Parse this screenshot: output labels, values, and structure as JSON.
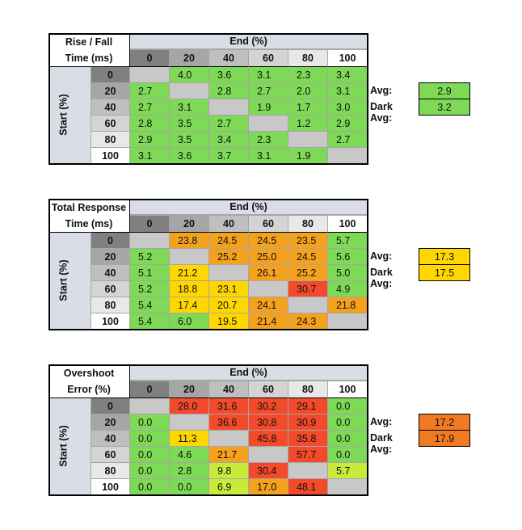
{
  "colors": {
    "header": "#d9dde6",
    "diag": "#c8c8c8",
    "grid": "#a6a6a6",
    "green": "#7ed957",
    "lime": "#c9ea3a",
    "yellow": "#ffd700",
    "orange": "#f4a11d",
    "dark_orange": "#f07a22",
    "red": "#f24a2a",
    "start_header_shades": [
      "#808080",
      "#a6a6a6",
      "#bfbfbf",
      "#d4d4d4",
      "#e8e8e8",
      "#ffffff"
    ]
  },
  "tables": [
    {
      "id": "rise-fall",
      "title_lines": [
        "Rise / Fall",
        "Time (ms)"
      ],
      "end_label": "End (%)",
      "start_label": "Start (%)",
      "columns": [
        "0",
        "20",
        "40",
        "60",
        "80",
        "100"
      ],
      "rows": [
        "0",
        "20",
        "40",
        "60",
        "80",
        "100"
      ],
      "cells": [
        [
          "",
          "4.0",
          "3.6",
          "3.1",
          "2.3",
          "3.4"
        ],
        [
          "2.7",
          "",
          "2.8",
          "2.7",
          "2.0",
          "3.1"
        ],
        [
          "2.7",
          "3.1",
          "",
          "1.9",
          "1.7",
          "3.0"
        ],
        [
          "2.8",
          "3.5",
          "2.7",
          "",
          "1.2",
          "2.9"
        ],
        [
          "2.9",
          "3.5",
          "3.4",
          "2.3",
          "",
          "2.7"
        ],
        [
          "3.1",
          "3.6",
          "3.7",
          "3.1",
          "1.9",
          ""
        ]
      ],
      "cell_colors": [
        [
          "diag",
          "green",
          "green",
          "green",
          "green",
          "green"
        ],
        [
          "green",
          "diag",
          "green",
          "green",
          "green",
          "green"
        ],
        [
          "green",
          "green",
          "diag",
          "green",
          "green",
          "green"
        ],
        [
          "green",
          "green",
          "green",
          "diag",
          "green",
          "green"
        ],
        [
          "green",
          "green",
          "green",
          "green",
          "diag",
          "green"
        ],
        [
          "green",
          "green",
          "green",
          "green",
          "green",
          "diag"
        ]
      ],
      "avg_label": "Avg:",
      "avg_value": "2.9",
      "avg_color": "green",
      "dark_avg_label": "Dark Avg:",
      "dark_avg_value": "3.2",
      "dark_avg_color": "green"
    },
    {
      "id": "total-response",
      "title_lines": [
        "Total Response",
        "Time (ms)"
      ],
      "end_label": "End (%)",
      "start_label": "Start (%)",
      "columns": [
        "0",
        "20",
        "40",
        "60",
        "80",
        "100"
      ],
      "rows": [
        "0",
        "20",
        "40",
        "60",
        "80",
        "100"
      ],
      "cells": [
        [
          "",
          "23.8",
          "24.5",
          "24.5",
          "23.5",
          "5.7"
        ],
        [
          "5.2",
          "",
          "25.2",
          "25.0",
          "24.5",
          "5.6"
        ],
        [
          "5.1",
          "21.2",
          "",
          "26.1",
          "25.2",
          "5.0"
        ],
        [
          "5.2",
          "18.8",
          "23.1",
          "",
          "30.7",
          "4.9"
        ],
        [
          "5.4",
          "17.4",
          "20.7",
          "24.1",
          "",
          "21.8"
        ],
        [
          "5.4",
          "6.0",
          "19.5",
          "21.4",
          "24.3",
          ""
        ]
      ],
      "cell_colors": [
        [
          "diag",
          "orange",
          "orange",
          "orange",
          "orange",
          "green"
        ],
        [
          "green",
          "diag",
          "orange",
          "orange",
          "orange",
          "green"
        ],
        [
          "green",
          "yellow",
          "diag",
          "orange",
          "orange",
          "green"
        ],
        [
          "green",
          "yellow",
          "yellow",
          "diag",
          "red",
          "green"
        ],
        [
          "green",
          "yellow",
          "yellow",
          "orange",
          "diag",
          "orange"
        ],
        [
          "green",
          "green",
          "yellow",
          "orange",
          "orange",
          "diag"
        ]
      ],
      "avg_label": "Avg:",
      "avg_value": "17.3",
      "avg_color": "yellow",
      "dark_avg_label": "Dark Avg:",
      "dark_avg_value": "17.5",
      "dark_avg_color": "yellow"
    },
    {
      "id": "overshoot",
      "title_lines": [
        "Overshoot",
        "Error (%)"
      ],
      "end_label": "End (%)",
      "start_label": "Start (%)",
      "columns": [
        "0",
        "20",
        "40",
        "60",
        "80",
        "100"
      ],
      "rows": [
        "0",
        "20",
        "40",
        "60",
        "80",
        "100"
      ],
      "cells": [
        [
          "",
          "28.0",
          "31.6",
          "30.2",
          "29.1",
          "0.0"
        ],
        [
          "0.0",
          "",
          "36.6",
          "30.8",
          "30.9",
          "0.0"
        ],
        [
          "0.0",
          "11.3",
          "",
          "45.8",
          "35.8",
          "0.0"
        ],
        [
          "0.0",
          "4.6",
          "21.7",
          "",
          "57.7",
          "0.0"
        ],
        [
          "0.0",
          "2.8",
          "9.8",
          "30.4",
          "",
          "5.7"
        ],
        [
          "0.0",
          "0.0",
          "6.9",
          "17.0",
          "48.1",
          ""
        ]
      ],
      "cell_colors": [
        [
          "diag",
          "red",
          "red",
          "red",
          "red",
          "green"
        ],
        [
          "green",
          "diag",
          "red",
          "red",
          "red",
          "green"
        ],
        [
          "green",
          "yellow",
          "diag",
          "red",
          "red",
          "green"
        ],
        [
          "green",
          "green",
          "orange",
          "diag",
          "red",
          "green"
        ],
        [
          "green",
          "green",
          "lime",
          "red",
          "diag",
          "lime"
        ],
        [
          "green",
          "green",
          "lime",
          "orange",
          "red",
          "diag"
        ]
      ],
      "avg_label": "Avg:",
      "avg_value": "17.2",
      "avg_color": "dark_orange",
      "dark_avg_label": "Dark Avg:",
      "dark_avg_value": "17.9",
      "dark_avg_color": "dark_orange"
    }
  ],
  "chart_data": [
    {
      "type": "heatmap",
      "title": "Rise / Fall Time (ms)",
      "xlabel": "End (%)",
      "ylabel": "Start (%)",
      "x": [
        0,
        20,
        40,
        60,
        80,
        100
      ],
      "y": [
        0,
        20,
        40,
        60,
        80,
        100
      ],
      "values": [
        [
          null,
          4.0,
          3.6,
          3.1,
          2.3,
          3.4
        ],
        [
          2.7,
          null,
          2.8,
          2.7,
          2.0,
          3.1
        ],
        [
          2.7,
          3.1,
          null,
          1.9,
          1.7,
          3.0
        ],
        [
          2.8,
          3.5,
          2.7,
          null,
          1.2,
          2.9
        ],
        [
          2.9,
          3.5,
          3.4,
          2.3,
          null,
          2.7
        ],
        [
          3.1,
          3.6,
          3.7,
          3.1,
          1.9,
          null
        ]
      ],
      "avg": 2.9,
      "dark_avg": 3.2
    },
    {
      "type": "heatmap",
      "title": "Total Response Time (ms)",
      "xlabel": "End (%)",
      "ylabel": "Start (%)",
      "x": [
        0,
        20,
        40,
        60,
        80,
        100
      ],
      "y": [
        0,
        20,
        40,
        60,
        80,
        100
      ],
      "values": [
        [
          null,
          23.8,
          24.5,
          24.5,
          23.5,
          5.7
        ],
        [
          5.2,
          null,
          25.2,
          25.0,
          24.5,
          5.6
        ],
        [
          5.1,
          21.2,
          null,
          26.1,
          25.2,
          5.0
        ],
        [
          5.2,
          18.8,
          23.1,
          null,
          30.7,
          4.9
        ],
        [
          5.4,
          17.4,
          20.7,
          24.1,
          null,
          21.8
        ],
        [
          5.4,
          6.0,
          19.5,
          21.4,
          24.3,
          null
        ]
      ],
      "avg": 17.3,
      "dark_avg": 17.5
    },
    {
      "type": "heatmap",
      "title": "Overshoot Error (%)",
      "xlabel": "End (%)",
      "ylabel": "Start (%)",
      "x": [
        0,
        20,
        40,
        60,
        80,
        100
      ],
      "y": [
        0,
        20,
        40,
        60,
        80,
        100
      ],
      "values": [
        [
          null,
          28.0,
          31.6,
          30.2,
          29.1,
          0.0
        ],
        [
          0.0,
          null,
          36.6,
          30.8,
          30.9,
          0.0
        ],
        [
          0.0,
          11.3,
          null,
          45.8,
          35.8,
          0.0
        ],
        [
          0.0,
          4.6,
          21.7,
          null,
          57.7,
          0.0
        ],
        [
          0.0,
          2.8,
          9.8,
          30.4,
          null,
          5.7
        ],
        [
          0.0,
          0.0,
          6.9,
          17.0,
          48.1,
          null
        ]
      ],
      "avg": 17.2,
      "dark_avg": 17.9
    }
  ]
}
